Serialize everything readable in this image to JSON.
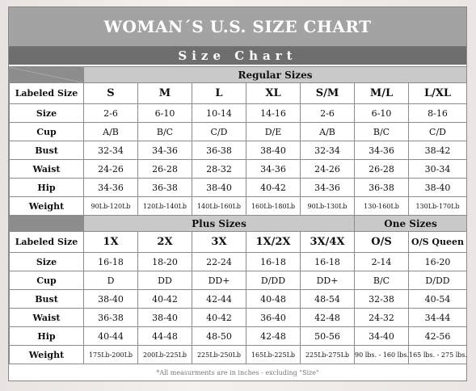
{
  "title": "WOMAN´S  U.S. SIZE CHART",
  "subtitle": "Size Chart",
  "regular": {
    "group_label": "Regular Sizes",
    "header_label": "Labeled Size",
    "sizes": [
      "S",
      "M",
      "L",
      "XL",
      "S/M",
      "M/L",
      "L/XL"
    ],
    "rows": [
      {
        "label": "Size",
        "values": [
          "2-6",
          "6-10",
          "10-14",
          "14-16",
          "2-6",
          "6-10",
          "8-16"
        ]
      },
      {
        "label": "Cup",
        "values": [
          "A/B",
          "B/C",
          "C/D",
          "D/E",
          "A/B",
          "B/C",
          "C/D"
        ]
      },
      {
        "label": "Bust",
        "values": [
          "32-34",
          "34-36",
          "36-38",
          "38-40",
          "32-34",
          "34-36",
          "38-42"
        ]
      },
      {
        "label": "Waist",
        "values": [
          "24-26",
          "26-28",
          "28-32",
          "34-36",
          "24-26",
          "26-28",
          "30-34"
        ]
      },
      {
        "label": "Hip",
        "values": [
          "34-36",
          "36-38",
          "38-40",
          "40-42",
          "34-36",
          "36-38",
          "38-40"
        ]
      },
      {
        "label": "Weight",
        "values": [
          "90Lb-120Lb",
          "120Lb-140Lb",
          "140Lb-160Lb",
          "160Lb-180Lb",
          "90Lb-130Lb",
          "130-160Lb",
          "130Lb-170Lb"
        ]
      }
    ]
  },
  "plus": {
    "group_label": "Plus Sizes",
    "one_group_label": "One Sizes",
    "header_label": "Labeled Size",
    "sizes": [
      "1X",
      "2X",
      "3X",
      "1X/2X",
      "3X/4X",
      "O/S",
      "O/S Queen"
    ],
    "rows": [
      {
        "label": "Size",
        "values": [
          "16-18",
          "18-20",
          "22-24",
          "16-18",
          "16-18",
          "2-14",
          "16-20"
        ]
      },
      {
        "label": "Cup",
        "values": [
          "D",
          "DD",
          "DD+",
          "D/DD",
          "DD+",
          "B/C",
          "D/DD"
        ]
      },
      {
        "label": "Bust",
        "values": [
          "38-40",
          "40-42",
          "42-44",
          "40-48",
          "48-54",
          "32-38",
          "40-54"
        ]
      },
      {
        "label": "Waist",
        "values": [
          "36-38",
          "38-40",
          "40-42",
          "36-40",
          "42-48",
          "24-32",
          "34-44"
        ]
      },
      {
        "label": "Hip",
        "values": [
          "40-44",
          "44-48",
          "48-50",
          "42-48",
          "50-56",
          "34-40",
          "42-56"
        ]
      },
      {
        "label": "Weight",
        "values": [
          "175Lb-200Lb",
          "200Lb-225Lb",
          "225Lb-250Lb",
          "165Lb-225Lb",
          "225Lb-275Lb",
          "90 lbs. - 160 lbs.",
          "165 lbs. - 275 lbs."
        ]
      }
    ]
  },
  "footnote": "*All measurments are in inches - excluding \"Size\""
}
